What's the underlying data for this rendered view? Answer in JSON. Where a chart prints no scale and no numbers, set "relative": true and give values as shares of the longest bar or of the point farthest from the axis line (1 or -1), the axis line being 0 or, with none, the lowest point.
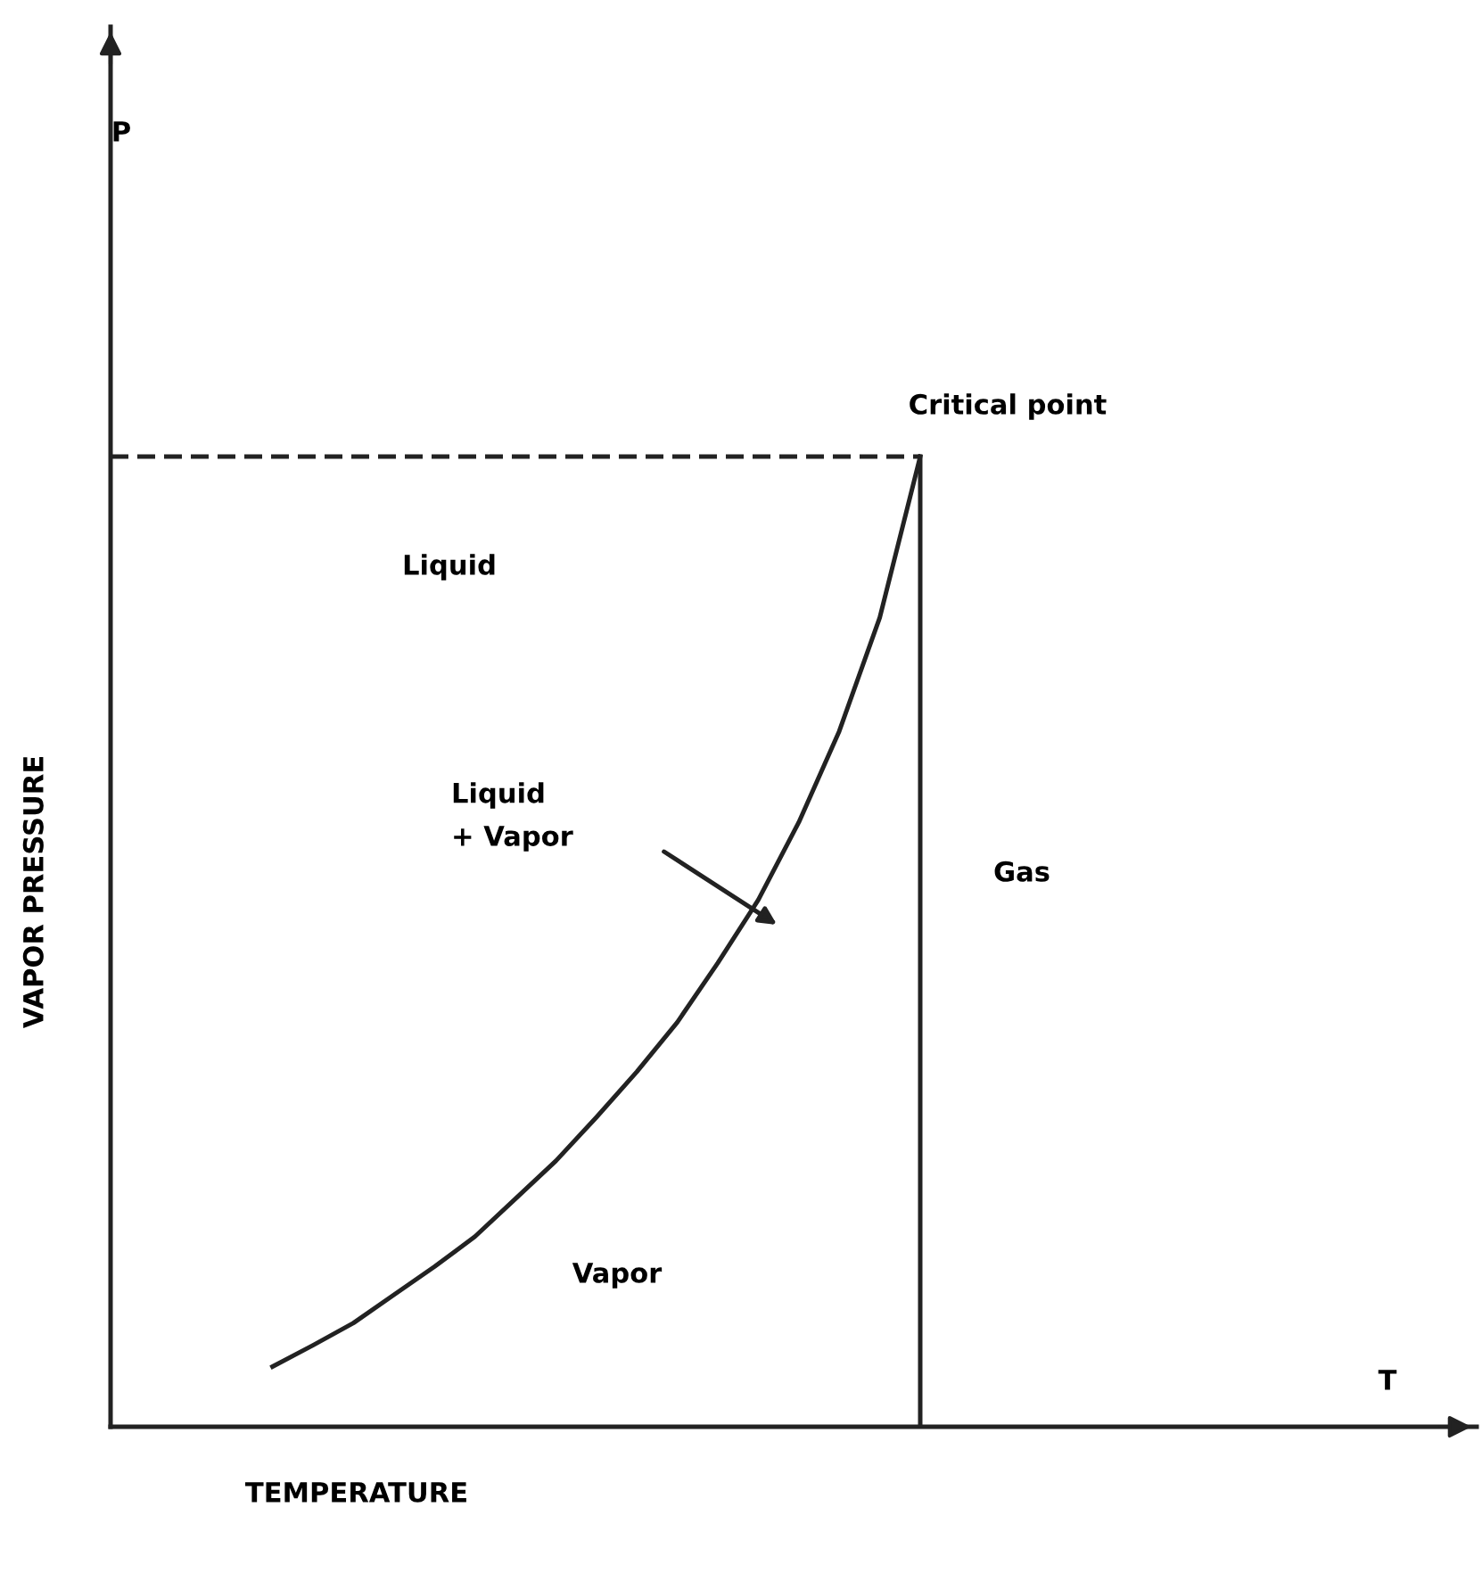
{
  "chart_data": {
    "type": "line",
    "relative": true,
    "xlabel": "TEMPERATURE",
    "ylabel": "VAPOR PRESSURE",
    "categories": [
      null,
      null,
      null,
      null,
      null,
      null,
      null,
      null,
      null,
      null,
      null,
      null,
      null,
      null,
      null,
      null,
      null,
      null,
      null,
      null,
      null
    ],
    "series": [
      {
        "color": "#222222",
        "values": [
          null,
          null,
          null,
          null,
          0.062,
          0.084,
          0.107,
          0.136,
          0.165,
          0.196,
          0.235,
          0.274,
          0.319,
          0.366,
          0.417,
          0.478,
          0.543,
          0.623,
          0.717,
          0.834,
          1.0
        ],
        "line_style": "solid"
      },
      {
        "color": "#222222",
        "values": [
          1.0,
          1.0,
          1.0,
          1.0,
          1.0,
          1.0,
          1.0,
          1.0,
          1.0,
          1.0,
          1.0,
          1.0,
          1.0,
          1.0,
          1.0,
          1.0,
          1.0,
          1.0,
          1.0,
          1.0,
          1.0
        ],
        "line_style": "dashed"
      }
    ],
    "annotations": [
      "P",
      "T",
      "Critical point",
      "Liquid",
      "Liquid\n+ Vapor",
      "Gas",
      "Vapor"
    ]
  }
}
